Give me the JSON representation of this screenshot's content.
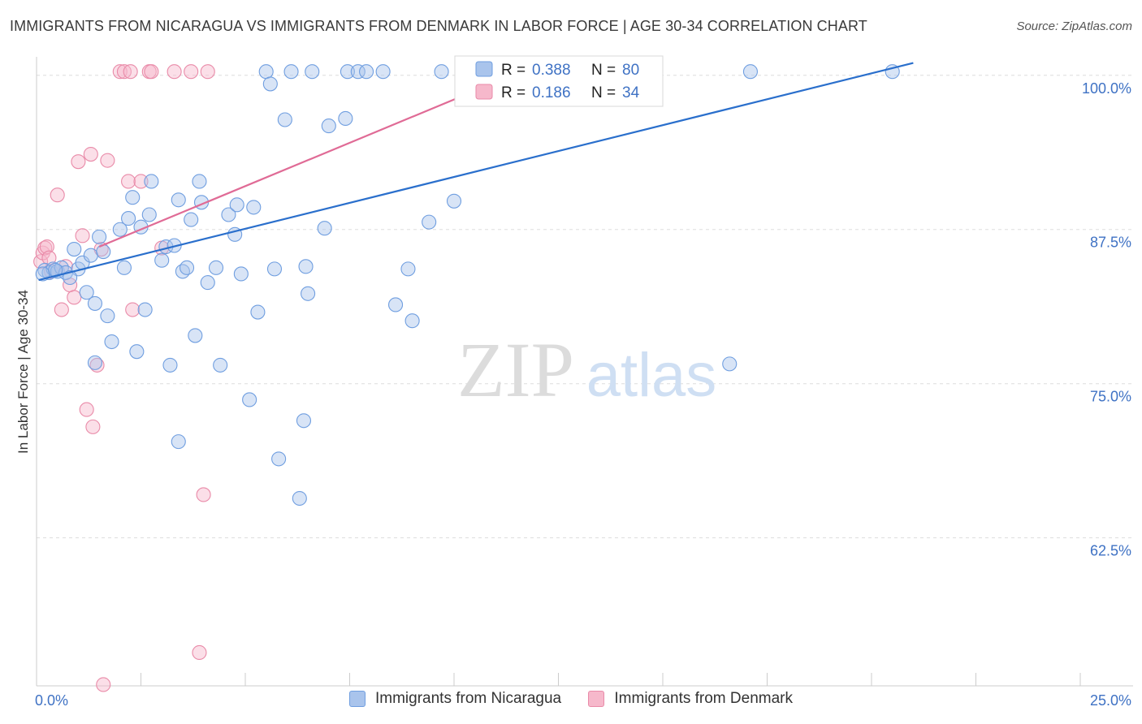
{
  "title": "IMMIGRANTS FROM NICARAGUA VS IMMIGRANTS FROM DENMARK IN LABOR FORCE | AGE 30-34 CORRELATION CHART",
  "source": "Source: ZipAtlas.com",
  "watermark": {
    "zip": "ZIP",
    "atlas": "atlas"
  },
  "colors": {
    "blue_fill": "#a9c4ec",
    "blue_stroke": "#6f9ee0",
    "blue_line": "#2a6fcc",
    "pink_fill": "#f6b8cb",
    "pink_stroke": "#e98aa8",
    "pink_line": "#e06b96",
    "axis_text": "#3f72c4",
    "grid": "#dddddd"
  },
  "stats_box": {
    "rows": [
      {
        "r_label": "R = ",
        "r_value": "0.388",
        "n_label": "N = ",
        "n_value": "80",
        "color": "blue"
      },
      {
        "r_label": "R = ",
        "r_value": "0.186",
        "n_label": "N = ",
        "n_value": "34",
        "color": "pink"
      }
    ]
  },
  "chart_data": {
    "type": "scatter",
    "title": "IMMIGRANTS FROM NICARAGUA VS IMMIGRANTS FROM DENMARK IN LABOR FORCE | AGE 30-34 CORRELATION CHART",
    "xlabel": "",
    "ylabel": "In Labor Force | Age 30-34",
    "xlim": [
      0,
      25
    ],
    "ylim": [
      50.5,
      101.5
    ],
    "x_tick_labels": [
      "0.0%",
      "25.0%"
    ],
    "y_ticks": [
      62.5,
      75.0,
      87.5,
      100.0
    ],
    "y_tick_labels": [
      "62.5%",
      "75.0%",
      "87.5%",
      "100.0%"
    ],
    "grid": true,
    "legend_position": "bottom",
    "series": [
      {
        "name": "Immigrants from Nicaragua",
        "color": "blue",
        "trend": {
          "x": [
            0.05,
            21.0
          ],
          "y": [
            83.4,
            101.0
          ]
        },
        "points": [
          [
            0.2,
            84.2
          ],
          [
            0.3,
            84.0
          ],
          [
            0.4,
            84.3
          ],
          [
            0.5,
            84.1
          ],
          [
            0.6,
            84.4
          ],
          [
            0.7,
            84.0
          ],
          [
            0.9,
            85.9
          ],
          [
            1.0,
            84.3
          ],
          [
            1.1,
            84.8
          ],
          [
            1.2,
            82.4
          ],
          [
            1.3,
            85.4
          ],
          [
            1.5,
            86.9
          ],
          [
            1.6,
            85.7
          ],
          [
            1.4,
            81.5
          ],
          [
            1.7,
            80.5
          ],
          [
            1.8,
            78.4
          ],
          [
            1.4,
            76.7
          ],
          [
            2.0,
            87.5
          ],
          [
            2.1,
            84.4
          ],
          [
            2.2,
            88.4
          ],
          [
            2.3,
            90.1
          ],
          [
            2.4,
            77.6
          ],
          [
            2.5,
            87.7
          ],
          [
            2.6,
            81.0
          ],
          [
            2.7,
            88.7
          ],
          [
            2.75,
            91.4
          ],
          [
            3.0,
            85.0
          ],
          [
            3.1,
            86.1
          ],
          [
            3.2,
            76.5
          ],
          [
            3.3,
            86.2
          ],
          [
            3.4,
            70.3
          ],
          [
            3.4,
            89.9
          ],
          [
            3.5,
            84.1
          ],
          [
            3.6,
            84.4
          ],
          [
            3.7,
            88.3
          ],
          [
            3.8,
            78.9
          ],
          [
            3.9,
            91.4
          ],
          [
            3.95,
            89.7
          ],
          [
            4.1,
            83.2
          ],
          [
            4.3,
            84.4
          ],
          [
            4.4,
            76.5
          ],
          [
            4.6,
            88.7
          ],
          [
            4.75,
            87.1
          ],
          [
            4.8,
            89.5
          ],
          [
            4.9,
            83.9
          ],
          [
            5.1,
            73.7
          ],
          [
            5.2,
            89.3
          ],
          [
            5.3,
            80.8
          ],
          [
            5.5,
            100.3
          ],
          [
            5.6,
            99.3
          ],
          [
            5.7,
            84.3
          ],
          [
            5.8,
            68.9
          ],
          [
            5.95,
            96.4
          ],
          [
            6.1,
            100.3
          ],
          [
            6.3,
            65.7
          ],
          [
            6.4,
            72.0
          ],
          [
            6.45,
            84.5
          ],
          [
            6.5,
            82.3
          ],
          [
            6.6,
            100.3
          ],
          [
            6.9,
            87.6
          ],
          [
            7.0,
            95.9
          ],
          [
            7.4,
            96.5
          ],
          [
            7.45,
            100.3
          ],
          [
            7.7,
            100.3
          ],
          [
            7.9,
            100.3
          ],
          [
            8.3,
            100.3
          ],
          [
            8.6,
            81.4
          ],
          [
            8.9,
            84.3
          ],
          [
            9.0,
            80.1
          ],
          [
            9.4,
            88.1
          ],
          [
            9.7,
            100.3
          ],
          [
            10.0,
            89.8
          ],
          [
            10.4,
            99.0
          ],
          [
            10.6,
            100.2
          ],
          [
            16.6,
            76.6
          ],
          [
            17.1,
            100.3
          ],
          [
            20.5,
            100.3
          ],
          [
            0.15,
            83.9
          ],
          [
            0.45,
            84.2
          ],
          [
            0.8,
            83.6
          ]
        ]
      },
      {
        "name": "Immigrants from Denmark",
        "color": "pink",
        "trend": {
          "x": [
            1.5,
            10.4
          ],
          "y": [
            86.1,
            98.6
          ]
        },
        "points": [
          [
            0.1,
            84.9
          ],
          [
            0.15,
            85.6
          ],
          [
            0.2,
            86.0
          ],
          [
            0.25,
            86.1
          ],
          [
            0.3,
            85.2
          ],
          [
            0.35,
            84.1
          ],
          [
            0.5,
            90.3
          ],
          [
            0.6,
            81.0
          ],
          [
            0.7,
            84.5
          ],
          [
            0.8,
            83.0
          ],
          [
            0.9,
            82.0
          ],
          [
            1.0,
            93.0
          ],
          [
            1.1,
            87.0
          ],
          [
            1.2,
            72.9
          ],
          [
            1.3,
            93.6
          ],
          [
            1.35,
            71.5
          ],
          [
            1.45,
            76.5
          ],
          [
            1.55,
            85.9
          ],
          [
            1.7,
            93.1
          ],
          [
            2.0,
            100.3
          ],
          [
            2.1,
            100.3
          ],
          [
            2.25,
            100.3
          ],
          [
            2.2,
            91.4
          ],
          [
            2.3,
            81.0
          ],
          [
            2.5,
            91.4
          ],
          [
            2.7,
            100.3
          ],
          [
            2.75,
            100.3
          ],
          [
            3.0,
            86.0
          ],
          [
            3.3,
            100.3
          ],
          [
            3.7,
            100.3
          ],
          [
            3.9,
            53.2
          ],
          [
            4.0,
            66.0
          ],
          [
            4.1,
            100.3
          ],
          [
            1.6,
            50.6
          ]
        ]
      }
    ]
  },
  "legend": {
    "items": [
      {
        "label": "Immigrants from Nicaragua",
        "color": "blue"
      },
      {
        "label": "Immigrants from Denmark",
        "color": "pink"
      }
    ]
  }
}
